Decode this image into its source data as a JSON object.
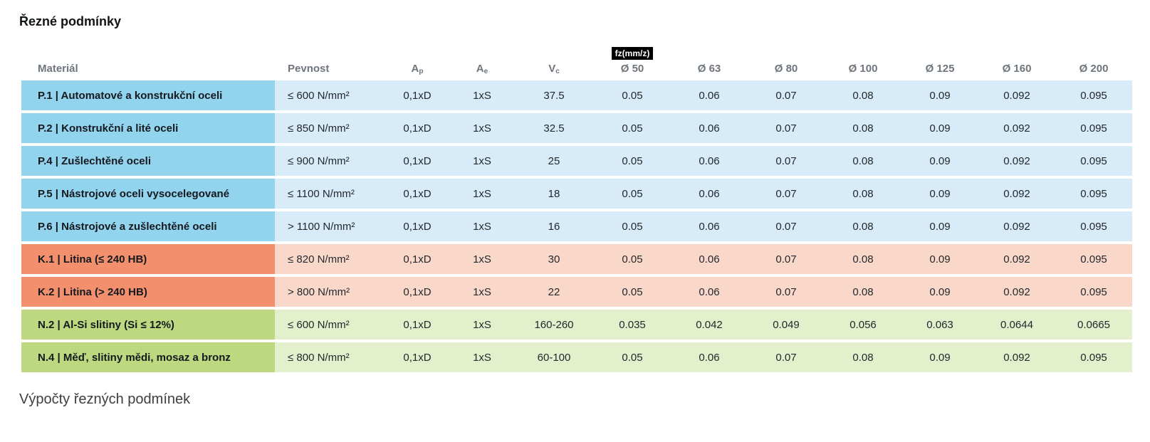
{
  "page": {
    "title": "Řezné podmínky",
    "footer_heading": "Výpočty řezných podmínek"
  },
  "colors": {
    "blue_strong": "#92d3ee",
    "blue_light": "#d7ecf8",
    "orange_strong": "#f2906e",
    "orange_light": "#f9d8ca",
    "green_strong": "#bcd980",
    "green_light": "#e4efcc",
    "header_gray": "#6e757c",
    "text_dark": "#23282d",
    "badge_bg": "#000000",
    "badge_fg": "#ffffff"
  },
  "table": {
    "fz_badge_label": "fz(mm/z)",
    "columns": {
      "material": "Materiál",
      "pevnost": "Pevnost",
      "ap_base": "A",
      "ap_sub": "p",
      "ae_base": "A",
      "ae_sub": "e",
      "vc_base": "V",
      "vc_sub": "c",
      "diameters": [
        "Ø 50",
        "Ø 63",
        "Ø 80",
        "Ø 100",
        "Ø 125",
        "Ø 160",
        "Ø 200"
      ]
    },
    "rows": [
      {
        "group": "P",
        "material": "P.1 | Automatové a konstrukční oceli",
        "pevnost": "≤ 600 N/mm²",
        "ap": "0,1xD",
        "ae": "1xS",
        "vc": "37.5",
        "fz": [
          "0.05",
          "0.06",
          "0.07",
          "0.08",
          "0.09",
          "0.092",
          "0.095"
        ]
      },
      {
        "group": "P",
        "material": "P.2 | Konstrukční a lité oceli",
        "pevnost": "≤ 850 N/mm²",
        "ap": "0,1xD",
        "ae": "1xS",
        "vc": "32.5",
        "fz": [
          "0.05",
          "0.06",
          "0.07",
          "0.08",
          "0.09",
          "0.092",
          "0.095"
        ]
      },
      {
        "group": "P",
        "material": "P.4 | Zušlechtěné oceli",
        "pevnost": "≤ 900 N/mm²",
        "ap": "0,1xD",
        "ae": "1xS",
        "vc": "25",
        "fz": [
          "0.05",
          "0.06",
          "0.07",
          "0.08",
          "0.09",
          "0.092",
          "0.095"
        ]
      },
      {
        "group": "P",
        "material": "P.5 | Nástrojové oceli vysocelegované",
        "pevnost": "≤ 1100 N/mm²",
        "ap": "0,1xD",
        "ae": "1xS",
        "vc": "18",
        "fz": [
          "0.05",
          "0.06",
          "0.07",
          "0.08",
          "0.09",
          "0.092",
          "0.095"
        ]
      },
      {
        "group": "P",
        "material": "P.6 | Nástrojové a zušlechtěné oceli",
        "pevnost": "> 1100 N/mm²",
        "ap": "0,1xD",
        "ae": "1xS",
        "vc": "16",
        "fz": [
          "0.05",
          "0.06",
          "0.07",
          "0.08",
          "0.09",
          "0.092",
          "0.095"
        ]
      },
      {
        "group": "K",
        "material": "K.1 | Litina (≤ 240 HB)",
        "pevnost": "≤ 820 N/mm²",
        "ap": "0,1xD",
        "ae": "1xS",
        "vc": "30",
        "fz": [
          "0.05",
          "0.06",
          "0.07",
          "0.08",
          "0.09",
          "0.092",
          "0.095"
        ]
      },
      {
        "group": "K",
        "material": "K.2 | Litina (> 240 HB)",
        "pevnost": "> 800 N/mm²",
        "ap": "0,1xD",
        "ae": "1xS",
        "vc": "22",
        "fz": [
          "0.05",
          "0.06",
          "0.07",
          "0.08",
          "0.09",
          "0.092",
          "0.095"
        ]
      },
      {
        "group": "N",
        "material": "N.2 | Al-Si slitiny (Si ≤ 12%)",
        "pevnost": "≤ 600 N/mm²",
        "ap": "0,1xD",
        "ae": "1xS",
        "vc": "160-260",
        "fz": [
          "0.035",
          "0.042",
          "0.049",
          "0.056",
          "0.063",
          "0.0644",
          "0.0665"
        ]
      },
      {
        "group": "N",
        "material": "N.4 | Měď, slitiny mědi, mosaz a bronz",
        "pevnost": "≤ 800 N/mm²",
        "ap": "0,1xD",
        "ae": "1xS",
        "vc": "60-100",
        "fz": [
          "0.05",
          "0.06",
          "0.07",
          "0.08",
          "0.09",
          "0.092",
          "0.095"
        ]
      }
    ]
  }
}
